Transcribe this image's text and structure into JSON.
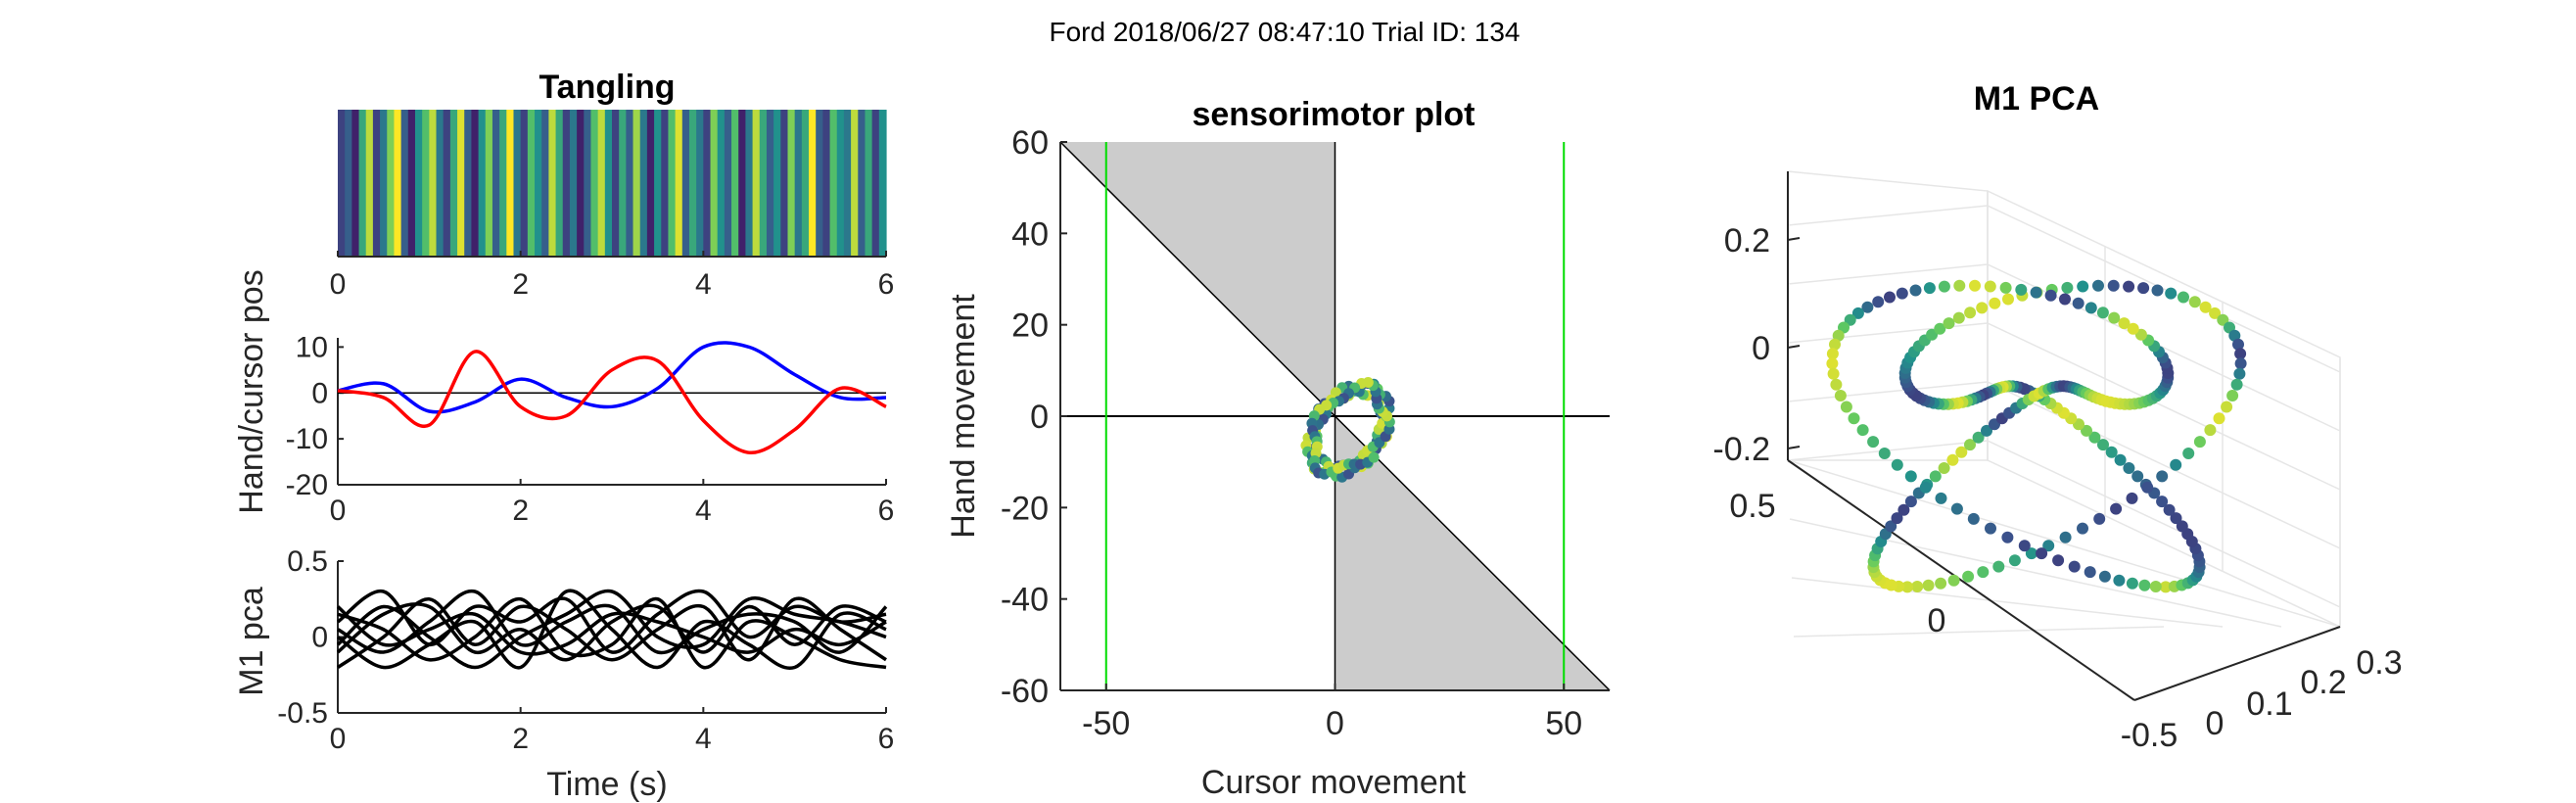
{
  "figure": {
    "suptitle": "Ford 2018/06/27 08:47:10 Trial ID: 134"
  },
  "colors": {
    "hand": "#0000ff",
    "cursor": "#ff0000",
    "pca_traces": "#000000",
    "shade": "#cccccc",
    "bounds": "#00dd00",
    "viridis": [
      "#440154",
      "#3b528b",
      "#21918c",
      "#5ec962",
      "#fde725"
    ]
  },
  "chart_data": [
    {
      "id": "tangling",
      "type": "heatmap",
      "title": "Tangling",
      "xlim": [
        0,
        6
      ],
      "xticks": [
        "0",
        "2",
        "4",
        "6"
      ],
      "colormap": "viridis",
      "values": [
        0.2,
        0.3,
        0.1,
        0.6,
        0.9,
        0.2,
        0.4,
        0.8,
        1.0,
        0.3,
        0.1,
        0.5,
        0.7,
        0.9,
        0.4,
        0.2,
        0.6,
        0.95,
        0.3,
        0.1,
        0.5,
        0.8,
        0.3,
        0.6,
        1.0,
        0.4,
        0.2,
        0.7,
        0.5,
        0.3,
        0.9,
        0.6,
        0.2,
        0.4,
        0.1,
        0.3,
        0.7,
        0.9,
        0.5,
        0.2,
        0.6,
        0.3,
        0.85,
        0.4,
        0.1,
        0.5,
        0.2,
        0.7,
        0.95,
        0.3,
        0.6,
        0.4,
        0.2,
        0.8,
        0.5,
        0.3,
        0.7,
        0.1,
        0.4,
        0.9,
        0.6,
        0.3,
        0.5,
        0.2,
        0.8,
        0.4,
        0.6,
        1.0,
        0.3,
        0.2,
        0.7,
        0.5,
        0.4,
        0.9,
        0.3,
        0.6,
        0.2,
        0.5
      ]
    },
    {
      "id": "handcursor",
      "type": "line",
      "ylabel": "Hand/cursor pos",
      "xlim": [
        0,
        6
      ],
      "ylim": [
        -20,
        12
      ],
      "xticks": [
        "0",
        "2",
        "4",
        "6"
      ],
      "yticks": [
        "10",
        "0",
        "-10",
        "-20"
      ],
      "x": [
        0,
        0.5,
        1,
        1.5,
        2,
        2.5,
        3,
        3.5,
        4,
        4.5,
        5,
        5.5,
        6
      ],
      "series": [
        {
          "key": "hand",
          "values": [
            0.5,
            2,
            -4,
            -2,
            3,
            -1,
            -3,
            1,
            10,
            10,
            4,
            -1,
            -1
          ]
        },
        {
          "key": "cursor",
          "values": [
            0.5,
            -1,
            -7,
            9,
            -3,
            -5,
            5,
            7,
            -6,
            -13,
            -8,
            1,
            -3
          ]
        }
      ]
    },
    {
      "id": "m1pca",
      "type": "line",
      "xlabel": "Time (s)",
      "ylabel": "M1 pca",
      "xlim": [
        0,
        6
      ],
      "ylim": [
        -0.5,
        0.5
      ],
      "xticks": [
        "0",
        "2",
        "4",
        "6"
      ],
      "yticks": [
        "0.5",
        "0",
        "-0.5"
      ],
      "x": [
        0,
        0.5,
        1,
        1.5,
        2,
        2.5,
        3,
        3.5,
        4,
        4.5,
        5,
        5.5,
        6
      ],
      "series": [
        {
          "values": [
            0.1,
            0.3,
            -0.05,
            0.2,
            0.1,
            0.25,
            -0.1,
            0.15,
            0.3,
            0.0,
            0.2,
            0.1,
            0.15
          ]
        },
        {
          "values": [
            -0.1,
            0.15,
            0.2,
            -0.1,
            0.05,
            -0.15,
            0.1,
            0.2,
            -0.1,
            0.2,
            -0.05,
            0.2,
            0.1
          ]
        },
        {
          "values": [
            0.05,
            -0.1,
            0.1,
            0.3,
            -0.05,
            0.1,
            0.2,
            -0.1,
            0.05,
            0.15,
            0.1,
            -0.1,
            0.2
          ]
        },
        {
          "values": [
            -0.2,
            0.0,
            0.25,
            -0.05,
            0.2,
            0.05,
            -0.15,
            0.05,
            0.2,
            -0.15,
            0.25,
            0.05,
            -0.15
          ]
        },
        {
          "values": [
            0.0,
            -0.2,
            -0.05,
            0.1,
            -0.2,
            0.3,
            0.05,
            -0.2,
            0.1,
            -0.05,
            -0.2,
            0.15,
            0.05
          ]
        },
        {
          "values": [
            0.15,
            0.05,
            -0.15,
            0.0,
            0.25,
            -0.1,
            -0.05,
            0.25,
            -0.2,
            0.1,
            0.0,
            -0.15,
            -0.2
          ]
        },
        {
          "values": [
            -0.05,
            0.2,
            0.0,
            -0.2,
            0.0,
            0.15,
            0.3,
            0.0,
            -0.05,
            0.25,
            0.15,
            0.1,
            0.0
          ]
        },
        {
          "values": [
            0.2,
            -0.05,
            0.05,
            0.15,
            -0.1,
            -0.05,
            0.15,
            0.1,
            0.0,
            -0.1,
            0.05,
            -0.05,
            0.1
          ]
        }
      ]
    },
    {
      "id": "sensorimotor",
      "type": "scatter",
      "title": "sensorimotor plot",
      "xlabel": "Cursor movement",
      "ylabel": "Hand movement",
      "xlim": [
        -60,
        60
      ],
      "ylim": [
        -60,
        60
      ],
      "xticks": [
        "-50",
        "0",
        "50"
      ],
      "yticks": [
        "60",
        "40",
        "20",
        "0",
        "-20",
        "-40",
        "-60"
      ],
      "bounds_x": [
        -50,
        50
      ],
      "shaded_regions": [
        [
          [
            -60,
            60
          ],
          [
            0,
            60
          ],
          [
            0,
            0
          ]
        ],
        [
          [
            0,
            0
          ],
          [
            0,
            -60
          ],
          [
            60,
            -60
          ]
        ]
      ],
      "diagonal": [
        [
          -60,
          60
        ],
        [
          60,
          -60
        ]
      ],
      "loop": {
        "center": [
          3,
          -3
        ],
        "radii": [
          7,
          10
        ],
        "tilt_deg": -35,
        "points": 120
      }
    },
    {
      "id": "pca3d",
      "type": "scatter",
      "title": "M1 PCA",
      "zticks": [
        "0.2",
        "0",
        "-0.2"
      ],
      "yticks": [
        "0.5",
        "0",
        "-0.5"
      ],
      "xticks": [
        "0",
        "0.1",
        "0.2",
        "0.3"
      ],
      "points": 260
    }
  ]
}
